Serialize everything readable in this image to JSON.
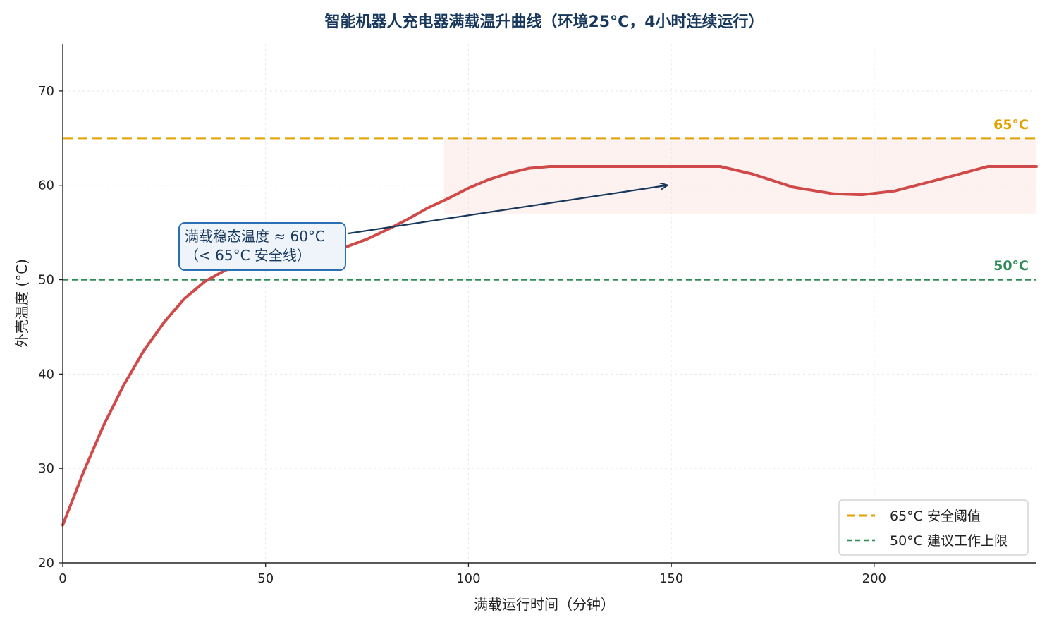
{
  "chart_data": {
    "type": "line",
    "title": "智能机器人充电器满载温升曲线（环境25°C，4小时连续运行）",
    "xlabel": "满载运行时间（分钟）",
    "ylabel": "外壳温度 (°C)",
    "xlim": [
      0,
      240
    ],
    "ylim": [
      20,
      75
    ],
    "xticks": [
      0,
      50,
      100,
      150,
      200
    ],
    "yticks": [
      20,
      30,
      40,
      50,
      60,
      70
    ],
    "grid": true,
    "legend_position": "bottom-right",
    "series": [
      {
        "color": "#d14a4a",
        "x": [
          0,
          5,
          10,
          15,
          20,
          25,
          30,
          35,
          40,
          45,
          50,
          55,
          60,
          65,
          70,
          75,
          80,
          85,
          90,
          95,
          100,
          105,
          110,
          115,
          120,
          125,
          131,
          140,
          150,
          162,
          170,
          180,
          190,
          197,
          205,
          215,
          228,
          240
        ],
        "y": [
          24,
          29.5,
          34.5,
          38.8,
          42.5,
          45.5,
          48,
          49.8,
          51,
          51.7,
          52.1,
          52.4,
          52.7,
          53.1,
          53.5,
          54.3,
          55.3,
          56.4,
          57.6,
          58.6,
          59.7,
          60.6,
          61.3,
          61.8,
          62,
          62,
          62,
          62,
          62,
          62,
          61.2,
          59.8,
          59.1,
          59,
          59.4,
          60.5,
          62,
          62
        ]
      }
    ],
    "reference_lines": [
      {
        "y": 65,
        "label": "65°C",
        "legend": "65°C 安全阈值",
        "color": "#e0a200",
        "style": "long-dash"
      },
      {
        "y": 50,
        "label": "50°C",
        "legend": "50°C 建议工作上限",
        "color": "#2e8b57",
        "style": "dash"
      }
    ],
    "shaded_band": {
      "x_from": 94,
      "x_to": 240,
      "y_from": 57,
      "y_to": 65,
      "color": "#fde8e4"
    },
    "annotation": {
      "text_line1": "满载稳态温度 ≈ 60°C",
      "text_line2": "（< 65°C 安全线）",
      "arrow_to": {
        "x": 150,
        "y": 60
      },
      "box_color": "#2a6fb3",
      "box_fill": "#eef4fa",
      "arrow_color": "#17385c"
    },
    "colors": {
      "title": "#17385c",
      "axis": "#222222",
      "grid": "#e6e6e6"
    }
  }
}
